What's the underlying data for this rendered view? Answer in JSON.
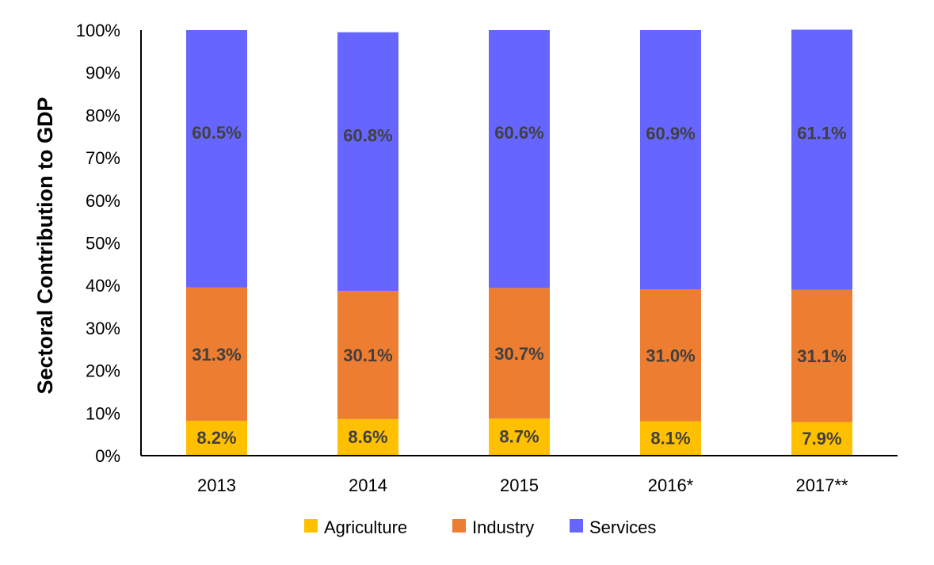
{
  "chart_data": {
    "type": "bar",
    "stacked": true,
    "categories": [
      "2013",
      "2014",
      "2015",
      "2016*",
      "2017**"
    ],
    "series": [
      {
        "name": "Agriculture",
        "color": "#FFC000",
        "values": [
          8.2,
          8.6,
          8.7,
          8.1,
          7.9
        ],
        "labels": [
          "8.2%",
          "8.6%",
          "8.7%",
          "8.1%",
          "7.9%"
        ]
      },
      {
        "name": "Industry",
        "color": "#ED7D31",
        "values": [
          31.3,
          30.1,
          30.7,
          31.0,
          31.1
        ],
        "labels": [
          "31.3%",
          "30.1%",
          "30.7%",
          "31.0%",
          "31.1%"
        ]
      },
      {
        "name": "Services",
        "color": "#6666FF",
        "values": [
          60.5,
          60.8,
          60.6,
          60.9,
          61.1
        ],
        "labels": [
          "60.5%",
          "60.8%",
          "60.6%",
          "60.9%",
          "61.1%"
        ]
      }
    ],
    "title": "",
    "xlabel": "",
    "ylabel": "Sectoral Contribution to GDP",
    "ylim": [
      0,
      100
    ],
    "yticks": [
      "0%",
      "10%",
      "20%",
      "30%",
      "40%",
      "50%",
      "60%",
      "70%",
      "80%",
      "90%",
      "100%"
    ],
    "grid": false,
    "legend": "bottom"
  }
}
